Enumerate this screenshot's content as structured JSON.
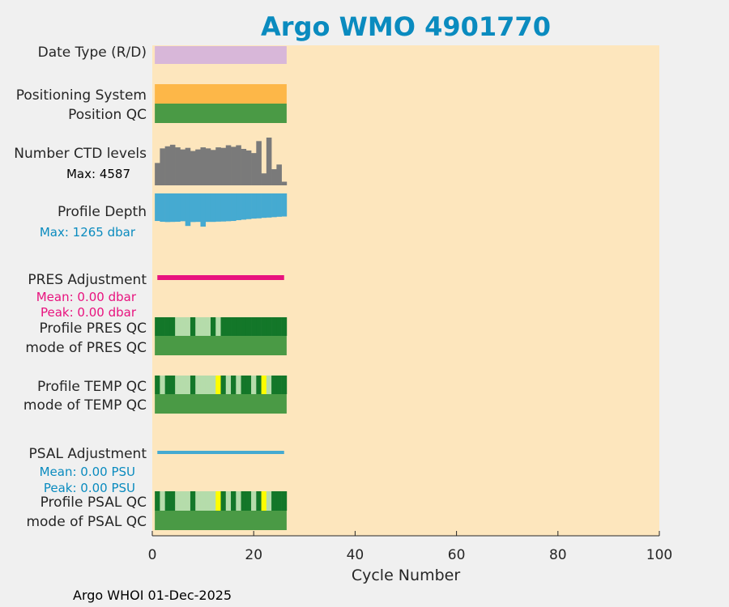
{
  "colors": {
    "background": "#f0f0f0",
    "plot_bg": "#fde6bd",
    "title": "#0a8bbf",
    "date_type": "#d8b7d9",
    "positioning": "#fdb748",
    "qc_good": "#4a9a45",
    "qc_dark": "#137729",
    "qc_light": "#b5dcab",
    "qc_yellow": "#fdfd00",
    "ctd": "#7a7a7a",
    "depth": "#45aad1",
    "pres_adj": "#e8127e",
    "psal_adj": "#45aad1",
    "depth_text": "#0a8bbf",
    "pres_text": "#e8127e",
    "psal_text": "#0a8bbf"
  },
  "title": "Argo WMO 4901770",
  "footer": "Argo WHOI 01-Dec-2025",
  "chart_data": {
    "type": "bar",
    "title": "Argo WMO 4901770",
    "xlabel": "Cycle Number",
    "xlim": [
      0,
      100
    ],
    "xticks": [
      "0",
      "20",
      "40",
      "60",
      "80",
      "100"
    ],
    "grid": false,
    "rows": {
      "date_type": {
        "label": "Date Type (R/D)"
      },
      "positioning": {
        "label": "Positioning System"
      },
      "position_qc": {
        "label": "Position QC"
      },
      "ctd_levels": {
        "label": "Number CTD levels",
        "max_label": "Max: 4587",
        "max": 4587
      },
      "profile_depth": {
        "label": "Profile Depth",
        "max_label": "Max: 1265 dbar",
        "max": 1265
      },
      "pres_adj": {
        "label": "PRES Adjustment",
        "mean_label": "Mean: 0.00 dbar",
        "peak_label": "Peak: 0.00 dbar"
      },
      "pres_qc": {
        "label": "Profile PRES QC"
      },
      "pres_mode": {
        "label": "mode of PRES QC"
      },
      "temp_qc": {
        "label": "Profile TEMP QC"
      },
      "temp_mode": {
        "label": "mode of TEMP QC"
      },
      "psal_adj": {
        "label": "PSAL Adjustment",
        "mean_label": "Mean: 0.00 PSU",
        "peak_label": "Peak: 0.00 PSU"
      },
      "psal_qc": {
        "label": "Profile PSAL QC"
      },
      "psal_mode": {
        "label": "mode of PSAL QC"
      }
    },
    "cycles": [
      1,
      2,
      3,
      4,
      5,
      6,
      7,
      8,
      9,
      10,
      11,
      12,
      13,
      14,
      15,
      16,
      17,
      18,
      19,
      20,
      21,
      22,
      23,
      24,
      25,
      26
    ],
    "ctd_levels": [
      2150,
      3550,
      3750,
      3900,
      3650,
      3450,
      3600,
      3300,
      3450,
      3650,
      3550,
      3400,
      3650,
      3600,
      3850,
      3700,
      3850,
      3500,
      3350,
      3100,
      4250,
      1150,
      4587,
      1550,
      2000,
      350
    ],
    "profile_depth": [
      1050,
      1080,
      1090,
      1085,
      1080,
      1060,
      1240,
      1090,
      1085,
      1265,
      1085,
      1085,
      1075,
      1070,
      1060,
      1050,
      1020,
      1000,
      980,
      960,
      950,
      930,
      920,
      905,
      890,
      880
    ],
    "pres_qc": [
      "dark",
      "dark",
      "dark",
      "dark",
      "light",
      "light",
      "light",
      "dark",
      "light",
      "light",
      "light",
      "dark",
      "light",
      "dark",
      "dark",
      "dark",
      "dark",
      "dark",
      "dark",
      "dark",
      "dark",
      "dark",
      "dark",
      "dark",
      "dark",
      "dark"
    ],
    "temp_qc": [
      "dark",
      "light",
      "dark",
      "dark",
      "light",
      "light",
      "light",
      "dark",
      "light",
      "light",
      "light",
      "light",
      "yellow",
      "dark",
      "light",
      "dark",
      "light",
      "dark",
      "dark",
      "light",
      "dark",
      "yellow",
      "light",
      "dark",
      "dark",
      "dark"
    ],
    "psal_qc": [
      "dark",
      "light",
      "dark",
      "dark",
      "light",
      "light",
      "light",
      "dark",
      "light",
      "light",
      "light",
      "light",
      "yellow",
      "dark",
      "light",
      "dark",
      "light",
      "dark",
      "dark",
      "light",
      "dark",
      "yellow",
      "light",
      "dark",
      "dark",
      "dark"
    ]
  }
}
